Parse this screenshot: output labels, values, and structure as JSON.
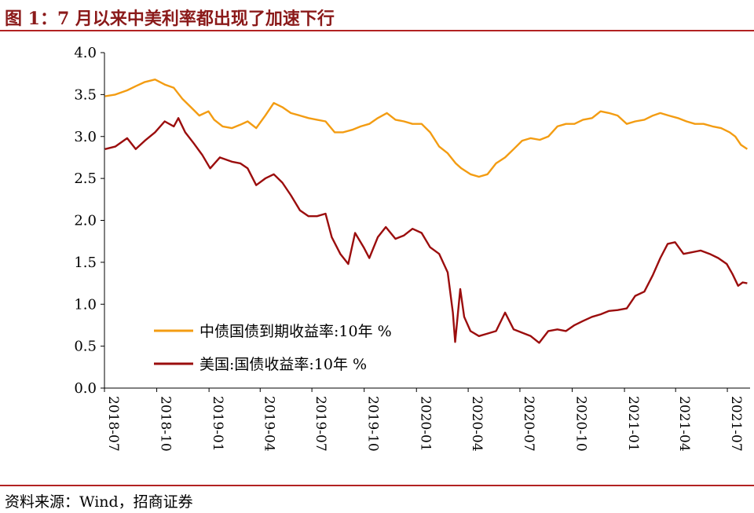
{
  "title": "图 1：7 月以来中美利率都出现了加速下行",
  "source": "资料来源：Wind，招商证券",
  "chart_data": {
    "type": "line",
    "xlabel": "",
    "ylabel": "",
    "ylim": [
      0,
      4
    ],
    "yticks": [
      "0.0",
      "0.5",
      "1.0",
      "1.5",
      "2.0",
      "2.5",
      "3.0",
      "3.5",
      "4.0"
    ],
    "xticks": [
      "2018-07",
      "2018-10",
      "2019-01",
      "2019-04",
      "2019-07",
      "2019-10",
      "2020-01",
      "2020-04",
      "2020-07",
      "2020-10",
      "2021-01",
      "2021-04",
      "2021-07"
    ],
    "xrange": [
      "2018-07",
      "2021-08"
    ],
    "grid": false,
    "legend_position": "bottom-left",
    "series": [
      {
        "name": "中债国债到期收益率:10年 %",
        "color": "#f39c12",
        "points": [
          [
            "2018-07-02",
            3.48
          ],
          [
            "2018-07-20",
            3.5
          ],
          [
            "2018-08-10",
            3.55
          ],
          [
            "2018-08-25",
            3.6
          ],
          [
            "2018-09-10",
            3.65
          ],
          [
            "2018-09-28",
            3.68
          ],
          [
            "2018-10-15",
            3.62
          ],
          [
            "2018-10-31",
            3.58
          ],
          [
            "2018-11-15",
            3.45
          ],
          [
            "2018-11-30",
            3.35
          ],
          [
            "2018-12-15",
            3.25
          ],
          [
            "2018-12-31",
            3.3
          ],
          [
            "2019-01-10",
            3.2
          ],
          [
            "2019-01-25",
            3.12
          ],
          [
            "2019-02-10",
            3.1
          ],
          [
            "2019-02-25",
            3.14
          ],
          [
            "2019-03-10",
            3.18
          ],
          [
            "2019-03-25",
            3.1
          ],
          [
            "2019-04-10",
            3.25
          ],
          [
            "2019-04-25",
            3.4
          ],
          [
            "2019-05-10",
            3.35
          ],
          [
            "2019-05-25",
            3.28
          ],
          [
            "2019-06-10",
            3.25
          ],
          [
            "2019-06-25",
            3.22
          ],
          [
            "2019-07-10",
            3.2
          ],
          [
            "2019-07-25",
            3.18
          ],
          [
            "2019-08-10",
            3.05
          ],
          [
            "2019-08-25",
            3.05
          ],
          [
            "2019-09-10",
            3.08
          ],
          [
            "2019-09-25",
            3.12
          ],
          [
            "2019-10-10",
            3.15
          ],
          [
            "2019-10-25",
            3.22
          ],
          [
            "2019-11-10",
            3.28
          ],
          [
            "2019-11-25",
            3.2
          ],
          [
            "2019-12-10",
            3.18
          ],
          [
            "2019-12-25",
            3.15
          ],
          [
            "2020-01-10",
            3.15
          ],
          [
            "2020-01-25",
            3.05
          ],
          [
            "2020-02-10",
            2.88
          ],
          [
            "2020-02-25",
            2.8
          ],
          [
            "2020-03-10",
            2.68
          ],
          [
            "2020-03-20",
            2.62
          ],
          [
            "2020-04-05",
            2.55
          ],
          [
            "2020-04-20",
            2.52
          ],
          [
            "2020-05-05",
            2.55
          ],
          [
            "2020-05-20",
            2.68
          ],
          [
            "2020-06-05",
            2.75
          ],
          [
            "2020-06-20",
            2.85
          ],
          [
            "2020-07-05",
            2.95
          ],
          [
            "2020-07-20",
            2.98
          ],
          [
            "2020-08-05",
            2.96
          ],
          [
            "2020-08-20",
            3.0
          ],
          [
            "2020-09-05",
            3.12
          ],
          [
            "2020-09-20",
            3.15
          ],
          [
            "2020-10-05",
            3.15
          ],
          [
            "2020-10-20",
            3.2
          ],
          [
            "2020-11-05",
            3.22
          ],
          [
            "2020-11-20",
            3.3
          ],
          [
            "2020-12-05",
            3.28
          ],
          [
            "2020-12-20",
            3.25
          ],
          [
            "2021-01-05",
            3.15
          ],
          [
            "2021-01-20",
            3.18
          ],
          [
            "2021-02-05",
            3.2
          ],
          [
            "2021-02-20",
            3.25
          ],
          [
            "2021-03-05",
            3.28
          ],
          [
            "2021-03-20",
            3.25
          ],
          [
            "2021-04-05",
            3.22
          ],
          [
            "2021-04-20",
            3.18
          ],
          [
            "2021-05-05",
            3.15
          ],
          [
            "2021-05-20",
            3.15
          ],
          [
            "2021-06-05",
            3.12
          ],
          [
            "2021-06-20",
            3.1
          ],
          [
            "2021-07-05",
            3.05
          ],
          [
            "2021-07-15",
            3.0
          ],
          [
            "2021-07-25",
            2.9
          ],
          [
            "2021-08-05",
            2.85
          ]
        ]
      },
      {
        "name": "美国:国债收益率:10年 %",
        "color": "#9b0d0d",
        "points": [
          [
            "2018-07-02",
            2.85
          ],
          [
            "2018-07-20",
            2.88
          ],
          [
            "2018-08-10",
            2.98
          ],
          [
            "2018-08-25",
            2.85
          ],
          [
            "2018-09-10",
            2.95
          ],
          [
            "2018-09-28",
            3.05
          ],
          [
            "2018-10-15",
            3.18
          ],
          [
            "2018-10-31",
            3.12
          ],
          [
            "2018-11-08",
            3.22
          ],
          [
            "2018-11-20",
            3.05
          ],
          [
            "2018-12-05",
            2.92
          ],
          [
            "2018-12-20",
            2.78
          ],
          [
            "2019-01-03",
            2.62
          ],
          [
            "2019-01-20",
            2.75
          ],
          [
            "2019-02-10",
            2.7
          ],
          [
            "2019-02-25",
            2.68
          ],
          [
            "2019-03-10",
            2.62
          ],
          [
            "2019-03-25",
            2.42
          ],
          [
            "2019-04-10",
            2.5
          ],
          [
            "2019-04-25",
            2.55
          ],
          [
            "2019-05-10",
            2.45
          ],
          [
            "2019-05-25",
            2.3
          ],
          [
            "2019-06-10",
            2.12
          ],
          [
            "2019-06-25",
            2.05
          ],
          [
            "2019-07-10",
            2.05
          ],
          [
            "2019-07-25",
            2.08
          ],
          [
            "2019-08-05",
            1.8
          ],
          [
            "2019-08-20",
            1.6
          ],
          [
            "2019-09-03",
            1.48
          ],
          [
            "2019-09-15",
            1.85
          ],
          [
            "2019-09-30",
            1.68
          ],
          [
            "2019-10-10",
            1.55
          ],
          [
            "2019-10-25",
            1.8
          ],
          [
            "2019-11-08",
            1.92
          ],
          [
            "2019-11-25",
            1.78
          ],
          [
            "2019-12-10",
            1.82
          ],
          [
            "2019-12-25",
            1.9
          ],
          [
            "2020-01-10",
            1.85
          ],
          [
            "2020-01-25",
            1.68
          ],
          [
            "2020-02-10",
            1.6
          ],
          [
            "2020-02-25",
            1.38
          ],
          [
            "2020-03-05",
            0.9
          ],
          [
            "2020-03-09",
            0.55
          ],
          [
            "2020-03-18",
            1.18
          ],
          [
            "2020-03-25",
            0.85
          ],
          [
            "2020-04-05",
            0.68
          ],
          [
            "2020-04-20",
            0.62
          ],
          [
            "2020-05-05",
            0.65
          ],
          [
            "2020-05-20",
            0.68
          ],
          [
            "2020-06-05",
            0.9
          ],
          [
            "2020-06-20",
            0.7
          ],
          [
            "2020-07-05",
            0.66
          ],
          [
            "2020-07-20",
            0.62
          ],
          [
            "2020-08-04",
            0.54
          ],
          [
            "2020-08-20",
            0.68
          ],
          [
            "2020-09-05",
            0.7
          ],
          [
            "2020-09-20",
            0.68
          ],
          [
            "2020-10-05",
            0.75
          ],
          [
            "2020-10-20",
            0.8
          ],
          [
            "2020-11-05",
            0.85
          ],
          [
            "2020-11-20",
            0.88
          ],
          [
            "2020-12-05",
            0.92
          ],
          [
            "2020-12-20",
            0.93
          ],
          [
            "2021-01-05",
            0.95
          ],
          [
            "2021-01-20",
            1.1
          ],
          [
            "2021-02-05",
            1.15
          ],
          [
            "2021-02-20",
            1.35
          ],
          [
            "2021-03-05",
            1.55
          ],
          [
            "2021-03-18",
            1.72
          ],
          [
            "2021-03-31",
            1.74
          ],
          [
            "2021-04-15",
            1.6
          ],
          [
            "2021-04-30",
            1.62
          ],
          [
            "2021-05-15",
            1.64
          ],
          [
            "2021-05-31",
            1.6
          ],
          [
            "2021-06-15",
            1.55
          ],
          [
            "2021-06-30",
            1.48
          ],
          [
            "2021-07-10",
            1.36
          ],
          [
            "2021-07-20",
            1.22
          ],
          [
            "2021-07-28",
            1.26
          ],
          [
            "2021-08-05",
            1.25
          ]
        ]
      }
    ]
  }
}
